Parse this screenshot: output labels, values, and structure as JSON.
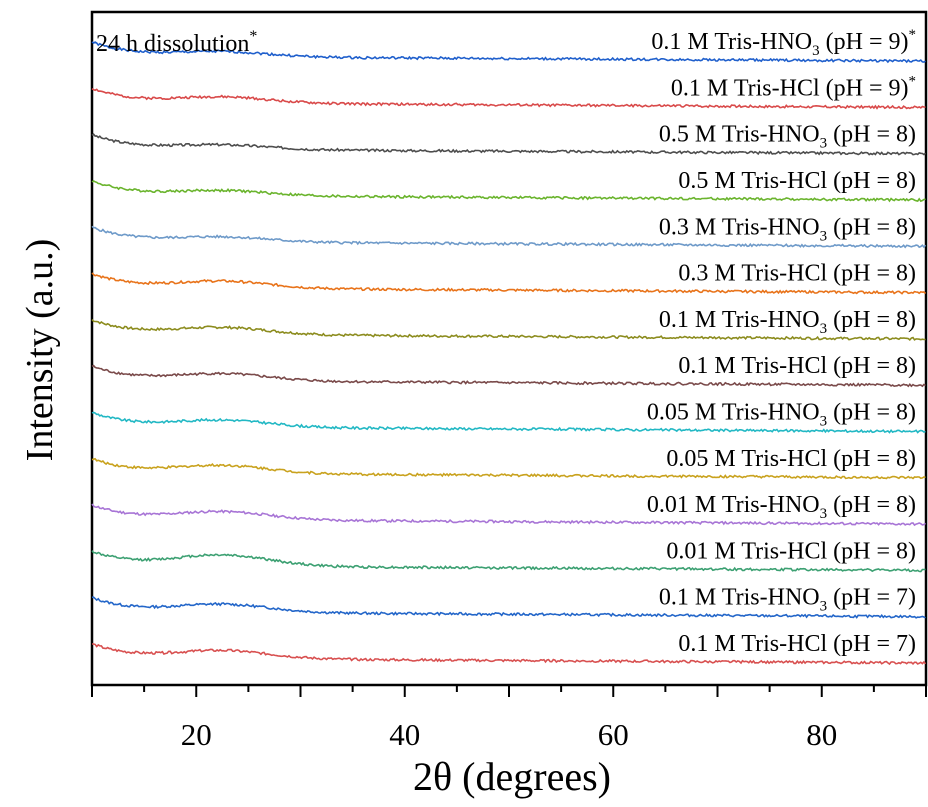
{
  "chart_data": {
    "type": "line",
    "title": "",
    "annotation": "24 h dissolution",
    "annotation_sup": "*",
    "xlabel": "2θ (degrees)",
    "ylabel": "Intensity (a.u.)",
    "xlim": [
      10,
      90
    ],
    "xticks": [
      20,
      40,
      60,
      80
    ],
    "yticks_shown": false,
    "grid": false,
    "legend": "inline labels at right end of each trace",
    "series": [
      {
        "name": "0.1 M Tris-HNO",
        "sub": "3",
        "suffix": " (pH = 9)",
        "sup": "*",
        "color": "#1f5fcc",
        "offset": 13,
        "peak_at": 22.5,
        "peak_height": 0.25
      },
      {
        "name": "0.1 M Tris-HCl (pH = 9)",
        "sub": "",
        "suffix": "",
        "sup": "*",
        "color": "#d94a4a",
        "offset": 12,
        "peak_at": 22.5,
        "peak_height": 0.3
      },
      {
        "name": "0.5 M Tris-HNO",
        "sub": "3",
        "suffix": " (pH = 8)",
        "sup": "",
        "color": "#4d4d4d",
        "offset": 11,
        "peak_at": 22.5,
        "peak_height": 0.22
      },
      {
        "name": "0.5 M Tris-HCl (pH = 8)",
        "sub": "",
        "suffix": "",
        "sup": "",
        "color": "#6ab42d",
        "offset": 10,
        "peak_at": 22.5,
        "peak_height": 0.25
      },
      {
        "name": "0.3 M Tris-HNO",
        "sub": "3",
        "suffix": " (pH = 8)",
        "sup": "",
        "color": "#6e9ac9",
        "offset": 9,
        "peak_at": 22.5,
        "peak_height": 0.25
      },
      {
        "name": "0.3 M Tris-HCl (pH = 8)",
        "sub": "",
        "suffix": "",
        "sup": "",
        "color": "#e8731a",
        "offset": 8,
        "peak_at": 22.5,
        "peak_height": 0.35
      },
      {
        "name": "0.1 M Tris-HNO",
        "sub": "3",
        "suffix": " (pH = 8)",
        "sup": "",
        "color": "#8c8c1e",
        "offset": 7,
        "peak_at": 22.5,
        "peak_height": 0.35
      },
      {
        "name": "0.1 M Tris-HCl (pH = 8)",
        "sub": "",
        "suffix": "",
        "sup": "",
        "color": "#7a4a4a",
        "offset": 6,
        "peak_at": 22.5,
        "peak_height": 0.35
      },
      {
        "name": "0.05 M Tris-HNO",
        "sub": "3",
        "suffix": " (pH = 8)",
        "sup": "",
        "color": "#22b8c4",
        "offset": 5,
        "peak_at": 22.5,
        "peak_height": 0.35
      },
      {
        "name": "0.05 M Tris-HCl (pH = 8)",
        "sub": "",
        "suffix": "",
        "sup": "",
        "color": "#c9a21e",
        "offset": 4,
        "peak_at": 22.5,
        "peak_height": 0.4
      },
      {
        "name": "0.01 M Tris-HNO",
        "sub": "3",
        "suffix": " (pH = 8)",
        "sup": "",
        "color": "#a875d6",
        "offset": 3,
        "peak_at": 22.5,
        "peak_height": 0.4
      },
      {
        "name": "0.01 M Tris-HCl (pH = 8)",
        "sub": "",
        "suffix": "",
        "sup": "",
        "color": "#3ca072",
        "offset": 2,
        "peak_at": 22.5,
        "peak_height": 0.55
      },
      {
        "name": "0.1 M Tris-HNO",
        "sub": "3",
        "suffix": " (pH = 7)",
        "sup": "",
        "color": "#2366c9",
        "offset": 1,
        "peak_at": 22.5,
        "peak_height": 0.4
      },
      {
        "name": "0.1 M Tris-HCl (pH = 7)",
        "sub": "",
        "suffix": "",
        "sup": "",
        "color": "#d85050",
        "offset": 0,
        "peak_at": 22.5,
        "peak_height": 0.4
      }
    ]
  }
}
